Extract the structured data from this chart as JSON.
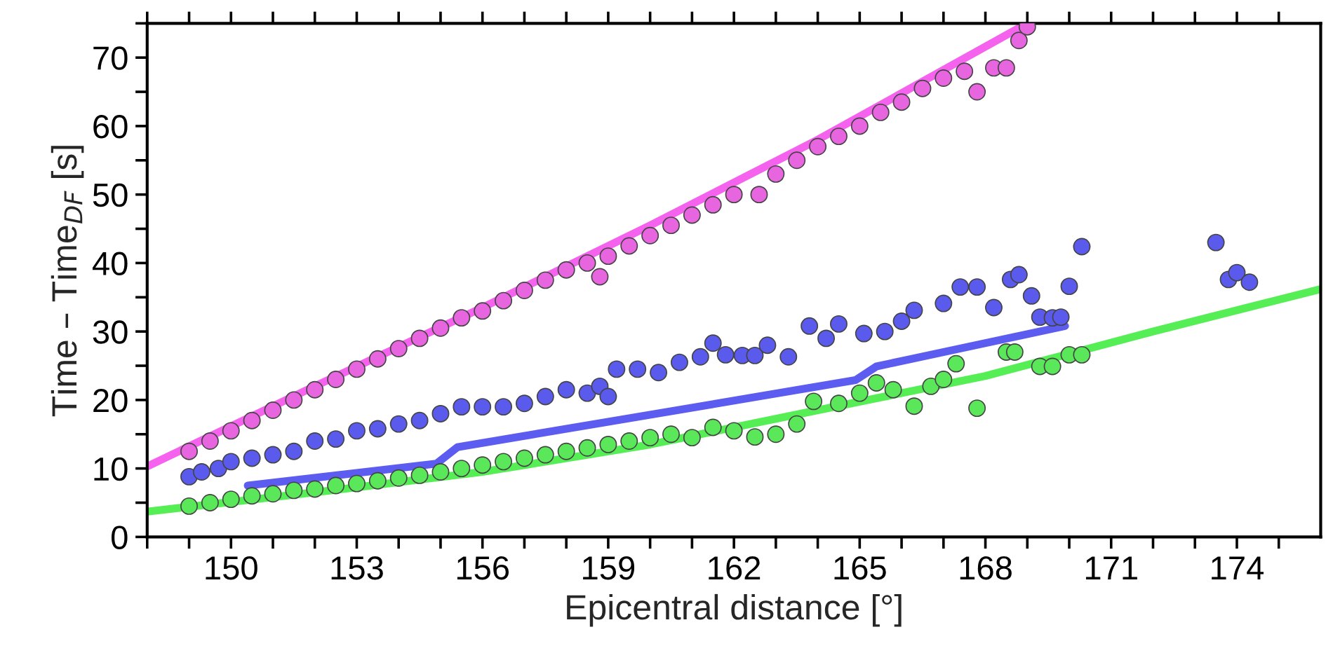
{
  "chart_data": {
    "type": "scatter",
    "xlabel": "Epicentral distance [°]",
    "ylabel": "Time – Time$_{DF}$ [s]",
    "xlim": [
      148,
      176
    ],
    "ylim": [
      0,
      75
    ],
    "xticks": [
      {
        "value": 148,
        "label": null
      },
      {
        "value": 149,
        "label": null
      },
      150,
      {
        "value": 151,
        "label": null
      },
      {
        "value": 152,
        "label": null
      },
      153,
      {
        "value": 154,
        "label": null
      },
      {
        "value": 155,
        "label": null
      },
      156,
      {
        "value": 157,
        "label": null
      },
      {
        "value": 158,
        "label": null
      },
      159,
      {
        "value": 160,
        "label": null
      },
      {
        "value": 161,
        "label": null
      },
      162,
      {
        "value": 163,
        "label": null
      },
      {
        "value": 164,
        "label": null
      },
      165,
      {
        "value": 166,
        "label": null
      },
      {
        "value": 167,
        "label": null
      },
      168,
      {
        "value": 169,
        "label": null
      },
      {
        "value": 170,
        "label": null
      },
      171,
      {
        "value": 172,
        "label": null
      },
      {
        "value": 173,
        "label": null
      },
      174,
      {
        "value": 175,
        "label": null
      }
    ],
    "yticks": [
      0,
      {
        "value": 5,
        "label": null
      },
      10,
      {
        "value": 15,
        "label": null
      },
      20,
      {
        "value": 25,
        "label": null
      },
      30,
      {
        "value": 35,
        "label": null
      },
      40,
      {
        "value": 45,
        "label": null
      },
      50,
      {
        "value": 55,
        "label": null
      },
      60,
      {
        "value": 65,
        "label": null
      },
      70,
      {
        "value": 75,
        "label": null
      }
    ],
    "grid": false,
    "legend": false,
    "marker": "circle",
    "series": [
      {
        "type": "line",
        "marker": "none",
        "color": "#f562ee",
        "x": [
          148,
          152,
          156,
          160,
          164,
          169
        ],
        "values": [
          10.3,
          22,
          33.5,
          45.5,
          58,
          75
        ]
      },
      {
        "type": "line",
        "marker": "none",
        "color": "#5c5cf0",
        "x": [
          150.4,
          154.9,
          155.4,
          164.9,
          165.4,
          169.9
        ],
        "values": [
          7.5,
          10.7,
          13.1,
          22.9,
          24.9,
          30.8
        ]
      },
      {
        "type": "line",
        "marker": "none",
        "color": "#55ee55",
        "x": [
          148,
          152,
          156,
          160,
          164,
          168,
          172,
          176
        ],
        "values": [
          3.7,
          6.5,
          9.5,
          13.5,
          18.5,
          23.5,
          30,
          36.2
        ]
      },
      {
        "color": "#e865e0",
        "x": [
          149,
          149.5,
          150,
          150.5,
          151,
          151.5,
          152,
          152.5,
          153,
          153.5,
          154,
          154.5,
          155,
          155.5,
          156,
          156.5,
          157,
          157.5,
          158,
          158.5,
          158.8,
          159,
          159.5,
          160,
          160.5,
          161,
          161.5,
          162,
          162.6,
          163,
          163.5,
          164,
          164.5,
          165,
          165.5,
          166,
          166.5,
          167,
          167.5,
          167.8,
          168.2,
          168.5,
          168.8,
          169
        ],
        "values": [
          12.5,
          14,
          15.5,
          17,
          18.5,
          20,
          21.5,
          23,
          24.5,
          26,
          27.5,
          29,
          30.5,
          32,
          33,
          34.5,
          36,
          37.5,
          39,
          40,
          38,
          41,
          42.5,
          44,
          45.5,
          47,
          48.5,
          50,
          50,
          53,
          55,
          57,
          58.5,
          60,
          62,
          63.5,
          65.5,
          67,
          68,
          65,
          68.5,
          68.5,
          72.5,
          74.5
        ]
      },
      {
        "color": "#5a5aec",
        "x": [
          149,
          149.3,
          149.7,
          150,
          150.5,
          151,
          151.5,
          152,
          152.5,
          153,
          153.5,
          154,
          154.5,
          155,
          155.5,
          156,
          156.5,
          157,
          157.5,
          158,
          158.5,
          158.8,
          159,
          159.2,
          159.7,
          160.2,
          160.7,
          161.2,
          161.5,
          161.8,
          162.2,
          162.5,
          162.8,
          163.3,
          163.8,
          164.2,
          164.5,
          165.1,
          165.6,
          166,
          166.3,
          167,
          167.4,
          167.8,
          168.2,
          168.6,
          168.8,
          169.1,
          169.3,
          169.6,
          169.8,
          170,
          170.3,
          173.5,
          173.8,
          174,
          174.3
        ],
        "values": [
          8.8,
          9.5,
          10,
          11,
          11.5,
          12,
          12.5,
          14,
          14.3,
          15.5,
          15.8,
          16.5,
          17,
          18,
          19,
          19,
          19,
          19.5,
          20.5,
          21.5,
          21,
          22,
          20.5,
          24.5,
          24.5,
          24,
          25.5,
          26.3,
          28.3,
          26.6,
          26.5,
          26.5,
          28,
          26.3,
          30.8,
          29,
          31.1,
          29.7,
          30,
          31.5,
          33.1,
          34.1,
          36.5,
          36.5,
          33.5,
          37.6,
          38.3,
          35.2,
          32.1,
          32,
          32.1,
          36.6,
          42.4,
          43,
          37.6,
          38.6,
          37.2
        ]
      },
      {
        "color": "#5ae85a",
        "x": [
          149,
          149.5,
          150,
          150.5,
          151,
          151.5,
          152,
          152.5,
          153,
          153.5,
          154,
          154.5,
          155,
          155.5,
          156,
          156.5,
          157,
          157.5,
          158,
          158.5,
          159,
          159.5,
          160,
          160.5,
          161,
          161.5,
          162,
          162.5,
          163,
          163.5,
          163.9,
          164.5,
          165,
          165.4,
          165.8,
          166.3,
          166.7,
          167,
          167.3,
          167.8,
          168.5,
          168.7,
          169.3,
          169.6,
          170,
          170.3
        ],
        "values": [
          4.5,
          5,
          5.5,
          6,
          6.3,
          6.8,
          7,
          7.5,
          7.8,
          8.2,
          8.6,
          9,
          9.5,
          10,
          10.5,
          11,
          11.5,
          12,
          12.5,
          13,
          13.5,
          14,
          14.5,
          15,
          14.5,
          16,
          15.5,
          14.6,
          15,
          16.5,
          19.8,
          19.5,
          21,
          22.5,
          21.5,
          19.1,
          22,
          23,
          25.3,
          18.8,
          27,
          27,
          24.9,
          24.9,
          26.6,
          26.6
        ]
      }
    ]
  }
}
